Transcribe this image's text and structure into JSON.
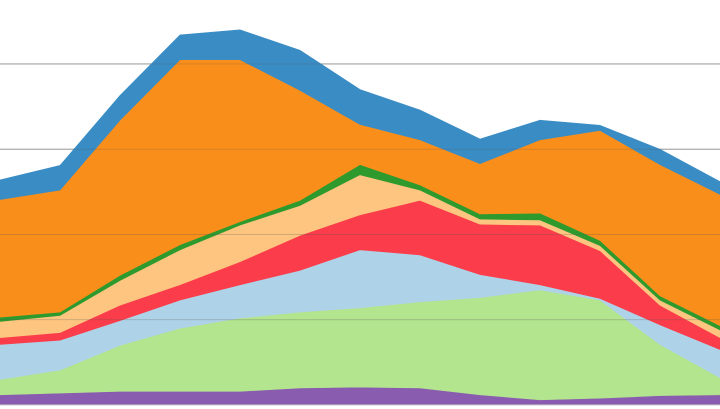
{
  "chart_data": {
    "type": "stacked-area",
    "categories": [
      null,
      null,
      null,
      null,
      null,
      null,
      null,
      null,
      null,
      null,
      null,
      null,
      null
    ],
    "ylim": [
      0,
      4.75
    ],
    "yticks": [
      1,
      2,
      3,
      4
    ],
    "grid": true,
    "series": [
      {
        "color": "#8a5cb0",
        "values": [
          0.12,
          0.14,
          0.16,
          0.16,
          0.16,
          0.2,
          0.21,
          0.2,
          0.12,
          0.06,
          0.08,
          0.11,
          0.12
        ]
      },
      {
        "color": "#b3e48e",
        "values": [
          0.18,
          0.27,
          0.54,
          0.74,
          0.86,
          0.89,
          0.93,
          1.01,
          1.14,
          1.29,
          1.15,
          0.6,
          0.2
        ]
      },
      {
        "color": "#aed3e8",
        "values": [
          0.41,
          0.35,
          0.29,
          0.33,
          0.39,
          0.49,
          0.68,
          0.55,
          0.27,
          0.06,
          0.02,
          0.23,
          0.33
        ]
      },
      {
        "color": "#fb3c4a",
        "values": [
          0.08,
          0.09,
          0.18,
          0.18,
          0.27,
          0.41,
          0.41,
          0.64,
          0.59,
          0.7,
          0.56,
          0.23,
          0.14
        ]
      },
      {
        "color": "#fdc57f",
        "values": [
          0.19,
          0.2,
          0.29,
          0.41,
          0.43,
          0.35,
          0.47,
          0.12,
          0.06,
          0.06,
          0.06,
          0.06,
          0.09
        ]
      },
      {
        "color": "#2e9a2e",
        "values": [
          0.05,
          0.04,
          0.06,
          0.06,
          0.04,
          0.06,
          0.12,
          0.06,
          0.06,
          0.08,
          0.06,
          0.05,
          0.05
        ]
      },
      {
        "color": "#fa8e1a",
        "values": [
          1.38,
          1.43,
          1.82,
          2.17,
          1.9,
          1.29,
          0.47,
          0.53,
          0.59,
          0.86,
          1.29,
          1.54,
          1.54
        ]
      },
      {
        "color": "#3a8cc4",
        "values": [
          0.23,
          0.29,
          0.29,
          0.29,
          0.35,
          0.47,
          0.41,
          0.35,
          0.29,
          0.23,
          0.06,
          0.18,
          0.15
        ]
      }
    ]
  }
}
